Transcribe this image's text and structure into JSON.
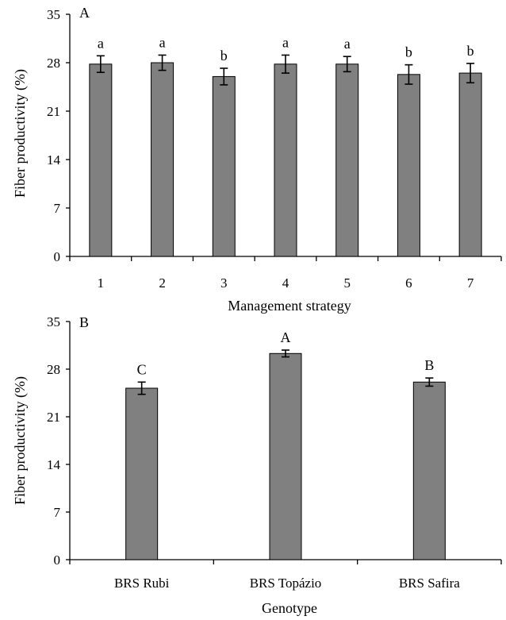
{
  "chart_data": [
    {
      "type": "bar",
      "panel_label": "A",
      "xlabel": "Management strategy",
      "ylabel": "Fiber productivity (%)",
      "ylim": [
        0,
        35
      ],
      "yticks": [
        0,
        7,
        14,
        21,
        28,
        35
      ],
      "categories": [
        "1",
        "2",
        "3",
        "4",
        "5",
        "6",
        "7"
      ],
      "values": [
        27.8,
        28.0,
        26.0,
        27.8,
        27.8,
        26.3,
        26.5
      ],
      "errors": [
        1.2,
        1.1,
        1.2,
        1.3,
        1.1,
        1.4,
        1.4
      ],
      "letters": [
        "a",
        "a",
        "b",
        "a",
        "a",
        "b",
        "b"
      ],
      "grid": false,
      "bar_color": "#808080"
    },
    {
      "type": "bar",
      "panel_label": "B",
      "xlabel": "Genotype",
      "ylabel": "Fiber productivity (%)",
      "ylim": [
        0,
        35
      ],
      "yticks": [
        0,
        7,
        14,
        21,
        28,
        35
      ],
      "categories": [
        "BRS Rubi",
        "BRS Topázio",
        "BRS Safira"
      ],
      "values": [
        25.2,
        30.3,
        26.1
      ],
      "errors": [
        0.9,
        0.5,
        0.6
      ],
      "letters": [
        "C",
        "A",
        "B"
      ],
      "grid": false,
      "bar_color": "#808080"
    }
  ]
}
